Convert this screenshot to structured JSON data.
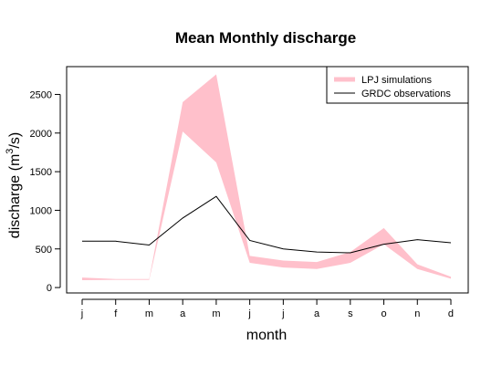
{
  "chart_data": {
    "type": "area",
    "title": "Mean Monthly discharge",
    "xlabel": "month",
    "ylabel": "discharge (m³/s)",
    "ylabel_base": "discharge (m",
    "ylabel_sup": "3",
    "ylabel_end": "/s)",
    "categories": [
      "j",
      "f",
      "m",
      "a",
      "m",
      "j",
      "j",
      "a",
      "s",
      "o",
      "n",
      "d"
    ],
    "ylim": [
      -70,
      2860
    ],
    "yticks": [
      0,
      500,
      1000,
      1500,
      2000,
      2500
    ],
    "grid": false,
    "legend_position": "top-right",
    "colors": {
      "band": "#ffc0cb",
      "line": "#000000"
    },
    "series": [
      {
        "name": "LPJ simulations",
        "kind": "band",
        "lower": [
          95,
          100,
          100,
          2020,
          1620,
          320,
          260,
          240,
          320,
          560,
          240,
          115
        ],
        "upper": [
          130,
          110,
          110,
          2400,
          2760,
          410,
          350,
          330,
          460,
          770,
          300,
          140
        ]
      },
      {
        "name": "GRDC observations",
        "kind": "line",
        "values": [
          600,
          600,
          550,
          900,
          1180,
          610,
          500,
          460,
          450,
          560,
          620,
          580
        ]
      }
    ]
  }
}
